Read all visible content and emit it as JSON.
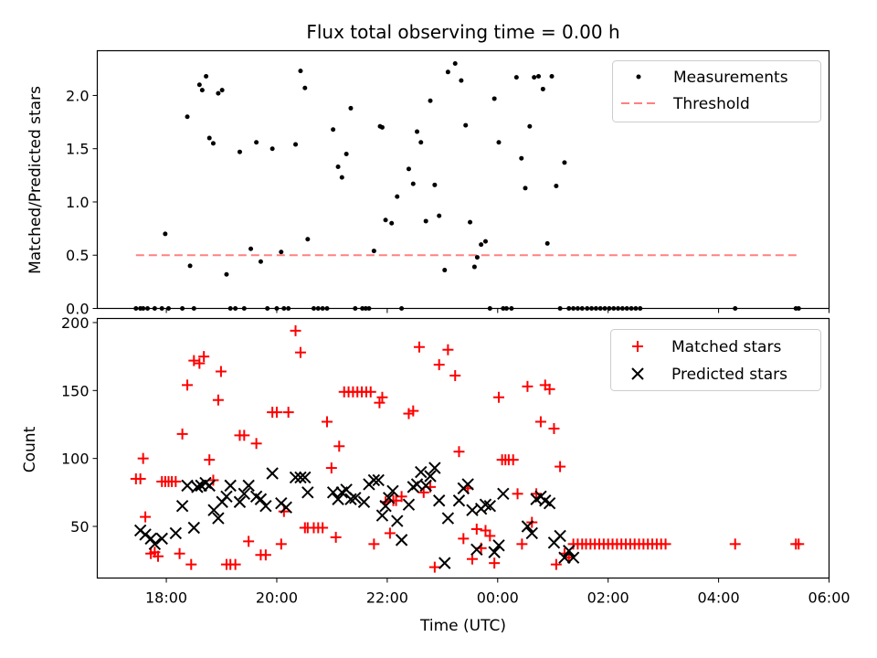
{
  "chart_data": [
    {
      "type": "scatter",
      "title": "Flux total observing time = 0.00 h",
      "xlabel": "",
      "ylabel": "Matched/Predicted stars",
      "xlim": [
        16.75,
        30.0
      ],
      "ylim": [
        0.0,
        2.42
      ],
      "yticks": [
        0.0,
        0.5,
        1.0,
        1.5,
        2.0
      ],
      "ytick_labels": [
        "0.0",
        "0.5",
        "1.0",
        "1.5",
        "2.0"
      ],
      "legend": {
        "placement": "top-right",
        "entries": [
          "Measurements",
          "Threshold"
        ]
      },
      "series": [
        {
          "name": "Measurements",
          "style": "black-dots",
          "x": [
            17.45,
            17.53,
            17.58,
            17.66,
            17.79,
            17.92,
            17.98,
            18.04,
            18.29,
            18.38,
            18.43,
            18.5,
            18.6,
            18.65,
            18.72,
            18.78,
            18.85,
            18.94,
            19.01,
            19.09,
            19.16,
            19.25,
            19.33,
            19.41,
            19.53,
            19.63,
            19.71,
            19.83,
            19.92,
            20.0,
            20.08,
            20.13,
            20.21,
            20.34,
            20.43,
            20.51,
            20.56,
            20.67,
            20.75,
            20.83,
            20.91,
            21.02,
            21.11,
            21.18,
            21.26,
            21.34,
            21.42,
            21.55,
            21.61,
            21.67,
            21.76,
            21.87,
            21.91,
            21.97,
            22.08,
            22.18,
            22.26,
            22.39,
            22.47,
            22.54,
            22.61,
            22.7,
            22.78,
            22.86,
            22.94,
            23.04,
            23.1,
            23.23,
            23.34,
            23.42,
            23.5,
            23.58,
            23.63,
            23.7,
            23.78,
            23.86,
            23.94,
            24.02,
            24.1,
            24.16,
            24.25,
            24.34,
            24.43,
            24.5,
            24.58,
            24.66,
            24.74,
            24.82,
            24.9,
            24.98,
            25.06,
            25.13,
            25.21,
            25.29,
            25.37,
            25.45,
            25.53,
            25.62,
            25.7,
            25.78,
            25.86,
            25.94,
            26.02,
            26.1,
            26.18,
            26.26,
            26.34,
            26.42,
            26.5,
            26.58,
            28.3,
            29.4,
            29.45
          ],
          "y": [
            0.0,
            0.0,
            0.0,
            0.0,
            0.0,
            0.0,
            0.7,
            0.0,
            0.0,
            1.8,
            0.4,
            0.0,
            2.1,
            2.05,
            2.18,
            1.6,
            1.55,
            2.02,
            2.05,
            0.32,
            0.0,
            0.0,
            1.47,
            0.0,
            0.56,
            1.56,
            0.44,
            0.0,
            1.5,
            0.0,
            0.53,
            0.0,
            0.0,
            1.54,
            2.23,
            2.07,
            0.65,
            0.0,
            0.0,
            0.0,
            0.0,
            1.68,
            1.33,
            1.23,
            1.45,
            1.88,
            0.0,
            0.0,
            0.0,
            0.0,
            0.54,
            1.71,
            1.7,
            0.83,
            0.8,
            1.05,
            0.0,
            1.31,
            1.17,
            1.66,
            1.56,
            0.82,
            1.95,
            1.16,
            0.87,
            0.36,
            2.22,
            2.3,
            2.14,
            1.72,
            0.81,
            0.39,
            0.48,
            0.6,
            0.63,
            0.0,
            1.97,
            1.56,
            0.0,
            0.0,
            0.0,
            2.17,
            1.41,
            1.13,
            1.71,
            2.17,
            2.18,
            2.06,
            0.61,
            2.18,
            1.15,
            0.0,
            1.37,
            0.0,
            0.0,
            0.0,
            0.0,
            0.0,
            0.0,
            0.0,
            0.0,
            0.0,
            0.0,
            0.0,
            0.0,
            0.0,
            0.0,
            0.0,
            0.0,
            0.0,
            0.0,
            0.0,
            0.0
          ]
        },
        {
          "name": "Threshold",
          "style": "dashed-line",
          "color": "#ff8080",
          "x": [
            17.45,
            29.45
          ],
          "y": [
            0.5,
            0.5
          ]
        }
      ]
    },
    {
      "type": "scatter",
      "title": "",
      "xlabel": "Time (UTC)",
      "ylabel": "Count",
      "xlim": [
        16.75,
        30.0
      ],
      "ylim": [
        12.0,
        203.0
      ],
      "yticks": [
        50,
        100,
        150,
        200
      ],
      "ytick_labels": [
        "50",
        "100",
        "150",
        "200"
      ],
      "xticks": [
        18,
        20,
        22,
        24,
        26,
        28,
        30
      ],
      "xtick_labels": [
        "18:00",
        "20:00",
        "22:00",
        "00:00",
        "02:00",
        "04:00",
        "06:00"
      ],
      "legend": {
        "placement": "top-right",
        "entries": [
          "Matched stars",
          "Predicted stars"
        ]
      },
      "series": [
        {
          "name": "Matched stars",
          "marker": "plus",
          "color": "#ff0000",
          "x": [
            17.45,
            17.53,
            17.58,
            17.62,
            17.72,
            17.79,
            17.85,
            17.92,
            17.98,
            18.04,
            18.1,
            18.17,
            18.24,
            18.29,
            18.38,
            18.45,
            18.5,
            18.6,
            18.68,
            18.78,
            18.85,
            18.94,
            18.99,
            19.09,
            19.16,
            19.25,
            19.33,
            19.41,
            19.49,
            19.63,
            19.71,
            19.8,
            19.92,
            20.0,
            20.08,
            20.13,
            20.21,
            20.34,
            20.43,
            20.51,
            20.56,
            20.67,
            20.75,
            20.83,
            20.91,
            20.99,
            21.07,
            21.13,
            21.22,
            21.3,
            21.38,
            21.46,
            21.54,
            21.62,
            21.7,
            21.76,
            21.86,
            21.91,
            21.97,
            22.05,
            22.11,
            22.16,
            22.26,
            22.39,
            22.47,
            22.58,
            22.66,
            22.78,
            22.86,
            22.94,
            23.1,
            23.23,
            23.3,
            23.38,
            23.46,
            23.54,
            23.62,
            23.7,
            23.78,
            23.86,
            23.94,
            24.02,
            24.08,
            24.14,
            24.2,
            24.28,
            24.36,
            24.44,
            24.54,
            24.62,
            24.7,
            24.78,
            24.86,
            24.94,
            25.02,
            25.06,
            25.13,
            25.21,
            25.29,
            25.37,
            25.45,
            25.53,
            25.6,
            25.68,
            25.76,
            25.84,
            25.92,
            26.0,
            26.08,
            26.16,
            26.24,
            26.32,
            26.4,
            26.48,
            26.56,
            26.64,
            26.72,
            26.8,
            26.88,
            26.96,
            27.04,
            28.3,
            29.4,
            29.45
          ],
          "y": [
            85,
            85,
            100,
            57,
            30,
            31,
            28,
            83,
            83,
            83,
            83,
            83,
            30,
            118,
            154,
            22,
            172,
            170,
            175,
            99,
            84,
            143,
            164,
            22,
            22,
            22,
            117,
            117,
            39,
            111,
            29,
            29,
            134,
            134,
            37,
            61,
            134,
            194,
            178,
            49,
            49,
            49,
            49,
            49,
            127,
            93,
            42,
            109,
            149,
            149,
            149,
            149,
            149,
            149,
            149,
            37,
            141,
            145,
            68,
            45,
            69,
            69,
            72,
            133,
            135,
            182,
            75,
            79,
            20,
            169,
            180,
            161,
            105,
            41,
            78,
            26,
            48,
            34,
            47,
            43,
            23,
            145,
            99,
            99,
            99,
            99,
            74,
            37,
            153,
            53,
            74,
            127,
            154,
            151,
            122,
            22,
            94,
            30,
            27,
            37,
            37,
            37,
            37,
            37,
            37,
            37,
            37,
            37,
            37,
            37,
            37,
            37,
            37,
            37,
            37,
            37,
            37,
            37,
            37,
            37,
            37,
            37,
            37,
            37
          ]
        },
        {
          "name": "Predicted stars",
          "marker": "x",
          "color": "#000000",
          "x": [
            17.53,
            17.62,
            17.72,
            17.79,
            17.92,
            18.17,
            18.29,
            18.38,
            18.5,
            18.56,
            18.63,
            18.71,
            18.78,
            18.86,
            18.94,
            19.01,
            19.09,
            19.16,
            19.33,
            19.41,
            19.49,
            19.63,
            19.71,
            19.8,
            19.92,
            20.08,
            20.17,
            20.34,
            20.43,
            20.51,
            20.56,
            21.02,
            21.11,
            21.18,
            21.26,
            21.34,
            21.42,
            21.58,
            21.67,
            21.76,
            21.84,
            21.91,
            21.97,
            22.03,
            22.1,
            22.18,
            22.26,
            22.39,
            22.47,
            22.54,
            22.61,
            22.7,
            22.78,
            22.86,
            22.94,
            23.04,
            23.1,
            23.3,
            23.38,
            23.46,
            23.54,
            23.62,
            23.7,
            23.78,
            23.86,
            23.94,
            24.02,
            24.1,
            24.54,
            24.62,
            24.7,
            24.78,
            24.86,
            24.94,
            25.02,
            25.13,
            25.21,
            25.29,
            25.37
          ],
          "y": [
            47,
            44,
            41,
            37,
            41,
            45,
            65,
            80,
            49,
            79,
            80,
            82,
            80,
            62,
            56,
            68,
            72,
            80,
            68,
            74,
            80,
            72,
            70,
            65,
            89,
            67,
            64,
            86,
            86,
            86,
            75,
            75,
            70,
            75,
            77,
            70,
            71,
            68,
            81,
            84,
            84,
            58,
            65,
            71,
            76,
            54,
            40,
            66,
            79,
            81,
            90,
            80,
            87,
            93,
            69,
            23,
            56,
            69,
            78,
            81,
            62,
            33,
            63,
            66,
            65,
            31,
            36,
            74,
            50,
            45,
            70,
            72,
            69,
            67,
            38,
            43,
            27,
            32,
            27
          ]
        }
      ]
    }
  ]
}
